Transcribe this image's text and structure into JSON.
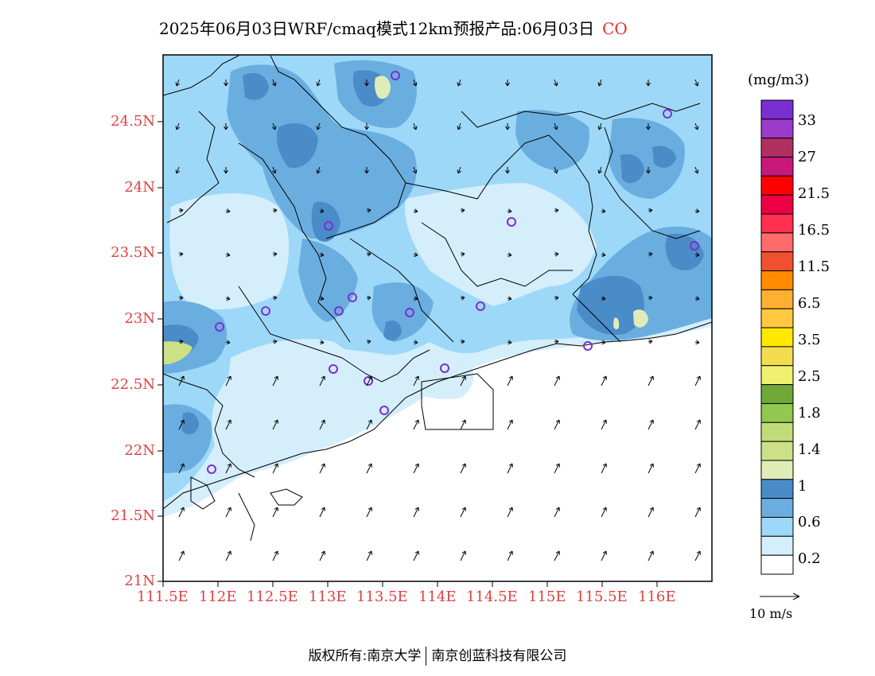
{
  "title": {
    "text": "2025年06月03日WRF/cmaq模式12km预报产品:06月03日",
    "species": "CO"
  },
  "map": {
    "lat_labels": [
      "24.5N",
      "24N",
      "23.5N",
      "23N",
      "22.5N",
      "22N",
      "21.5N",
      "21N"
    ],
    "lon_labels": [
      "111.5E",
      "112E",
      "112.5E",
      "113E",
      "113.5E",
      "114E",
      "114.5E",
      "115E",
      "115.5E",
      "116E"
    ],
    "lat_range": [
      21.0,
      25.0
    ],
    "lon_range": [
      111.5,
      116.5
    ]
  },
  "colorbar": {
    "unit": "(mg/m3)",
    "labels": [
      "33",
      "27",
      "21.5",
      "16.5",
      "11.5",
      "6.5",
      "3.5",
      "2.5",
      "1.8",
      "1.4",
      "1",
      "0.6",
      "0.2"
    ],
    "colors_top_to_bottom": [
      "#7b2fd0",
      "#9a3bcb",
      "#b03060",
      "#c8187a",
      "#ff0000",
      "#ee0044",
      "#ff3050",
      "#ff6a6a",
      "#f05030",
      "#ff8c00",
      "#ffb030",
      "#ffc840",
      "#ffe800",
      "#f4dc50",
      "#f0f070",
      "#70a838",
      "#90c850",
      "#c0dc78",
      "#cce088",
      "#e0ecb8",
      "#4a8cc8",
      "#6aaee0",
      "#9ed8f8",
      "#d4eefc",
      "#ffffff"
    ]
  },
  "wind_reference": {
    "label": "10 m/s"
  },
  "footer": {
    "left": "版权所有:南京大学",
    "right": "南京创蓝科技有限公司"
  }
}
